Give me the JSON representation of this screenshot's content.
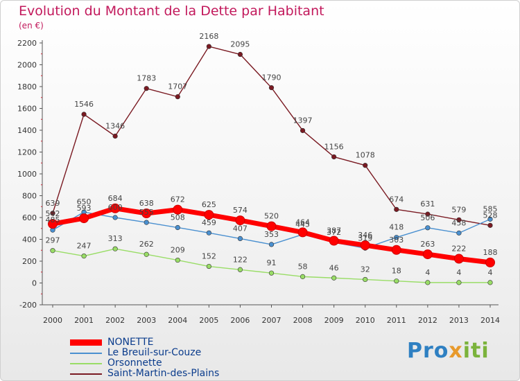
{
  "title": "Evolution du Montant de la Dette par Habitant",
  "unit_label": "(en €)",
  "logo": "Proxiti",
  "chart_data": {
    "type": "line",
    "title": "Evolution du Montant de la Dette par Habitant",
    "ylabel": "(en €)",
    "xlabel": "",
    "ylim": [
      -200,
      2200
    ],
    "y_ticks": [
      -200,
      0,
      200,
      400,
      600,
      800,
      1000,
      1200,
      1400,
      1600,
      1800,
      2000,
      2200
    ],
    "grid": false,
    "legend_position": "bottom-left",
    "categories": [
      "2000",
      "2001",
      "2002",
      "2003",
      "2004",
      "2005",
      "2006",
      "2007",
      "2008",
      "2009",
      "2010",
      "2011",
      "2012",
      "2013",
      "2014"
    ],
    "series": [
      {
        "name": "NONETTE",
        "color": "#ff0000",
        "values": [
          542,
          593,
          684,
          638,
          672,
          625,
          574,
          520,
          464,
          387,
          346,
          303,
          263,
          222,
          188
        ]
      },
      {
        "name": "Le Breuil-sur-Couze",
        "color": "#4a90d0",
        "values": [
          485,
          650,
          600,
          555,
          508,
          459,
          407,
          353,
          445,
          372,
          319,
          418,
          506,
          458,
          585
        ]
      },
      {
        "name": "Orsonnette",
        "color": "#99dd66",
        "values": [
          297,
          247,
          313,
          262,
          209,
          152,
          122,
          91,
          58,
          46,
          32,
          18,
          4,
          4,
          4
        ]
      },
      {
        "name": "Saint-Martin-des-Plains",
        "color": "#7a1a22",
        "values": [
          639,
          1546,
          1346,
          1783,
          1707,
          2168,
          2095,
          1790,
          1397,
          1156,
          1078,
          674,
          631,
          579,
          528
        ]
      }
    ]
  }
}
